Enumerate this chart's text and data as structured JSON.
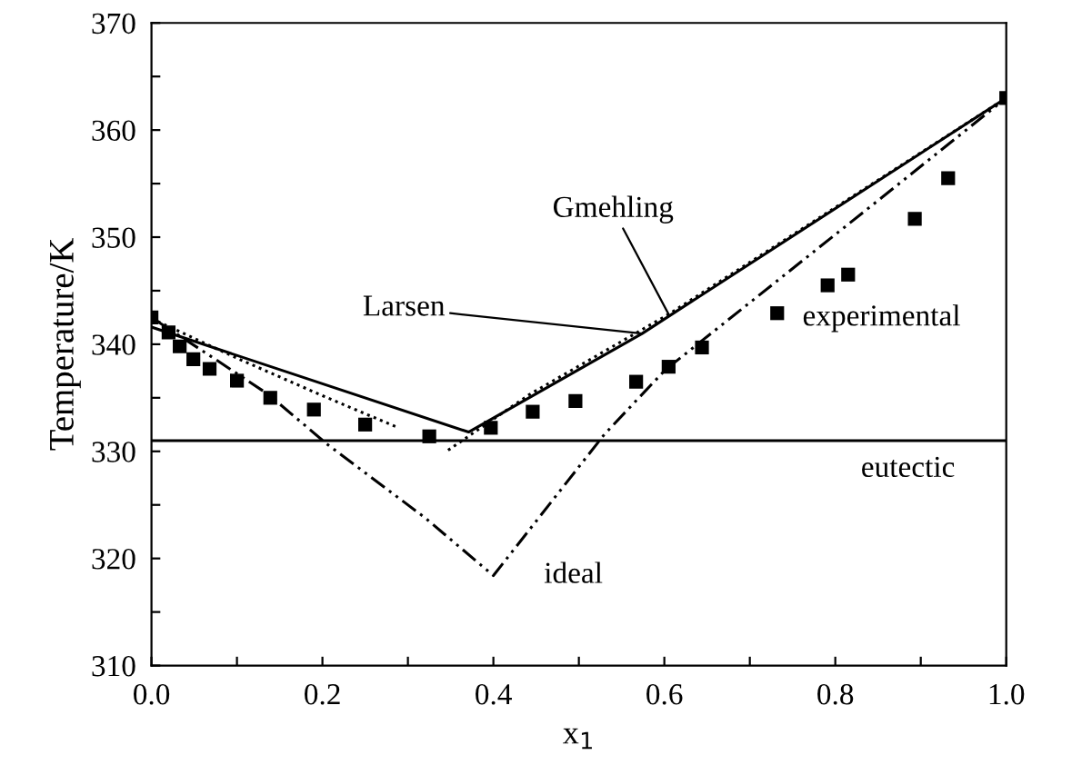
{
  "chart_data": {
    "type": "line",
    "xlabel": "x$_{1}$",
    "ylabel": "Temperature/K",
    "xlim": [
      0,
      1
    ],
    "ylim": [
      310,
      370
    ],
    "xticks": [
      {
        "value": 0,
        "label": "0.0"
      },
      {
        "value": 0.1,
        "label": null
      },
      {
        "value": 0.2,
        "label": "0.2"
      },
      {
        "value": 0.3,
        "label": null
      },
      {
        "value": 0.4,
        "label": "0.4"
      },
      {
        "value": 0.5,
        "label": null
      },
      {
        "value": 0.6,
        "label": "0.6"
      },
      {
        "value": 0.7,
        "label": null
      },
      {
        "value": 0.8,
        "label": "0.8"
      },
      {
        "value": 0.9,
        "label": null
      },
      {
        "value": 1,
        "label": "1.0"
      }
    ],
    "yticks": [
      310,
      {
        "value": 315,
        "label": null
      },
      320,
      {
        "value": 325,
        "label": null
      },
      330,
      {
        "value": 335,
        "label": null
      },
      340,
      {
        "value": 345,
        "label": null
      },
      350,
      {
        "value": 355,
        "label": null
      },
      360,
      {
        "value": 365,
        "label": null
      },
      370
    ],
    "series": [
      {
        "name": "experimental",
        "type": "scatter",
        "marker": "square",
        "color": "#000000",
        "x": [
          0,
          0.02,
          0.033,
          0.049,
          0.068,
          0.1,
          0.139,
          0.19,
          0.25,
          0.325,
          0.397,
          0.446,
          0.496,
          0.567,
          0.605,
          0.644,
          0.732,
          0.791,
          0.815,
          0.893,
          0.932,
          1.0
        ],
        "values": [
          342.5,
          341.1,
          339.8,
          338.6,
          337.7,
          336.6,
          335.0,
          333.9,
          332.5,
          331.4,
          332.2,
          333.7,
          334.7,
          336.5,
          337.9,
          339.7,
          342.9,
          345.5,
          346.5,
          351.7,
          355.5,
          363
        ]
      },
      {
        "name": "Larsen",
        "line_style": "solid",
        "color": "#000000",
        "x": [
          0,
          0.371,
          0.574,
          1.0
        ],
        "values": [
          341.6,
          331.8,
          341.0,
          363
        ]
      },
      {
        "name": "Gmehling",
        "line_style": "dotted",
        "color": "#000000",
        "x": [
          0,
          0.1,
          0.2,
          0.286,
          0.29,
          0.347,
          0.442,
          0.605,
          1.0
        ],
        "values": [
          342.4,
          338.7,
          335.2,
          332.3,
          null,
          330.1,
          335.3,
          342.8,
          363
        ]
      },
      {
        "name": "ideal",
        "line_style": "dashed",
        "color": "#000000",
        "x": [
          0,
          0.069,
          0.137,
          0.205,
          0.32,
          0.4,
          0.53,
          0.601,
          0.845,
          1.0
        ],
        "values": [
          342.5,
          338.9,
          335.3,
          330.7,
          323.8,
          318.4,
          331.6,
          337.6,
          353.1,
          363
        ]
      }
    ],
    "ref_lines": [
      {
        "axis": "y",
        "value": 331,
        "label": "eutectic",
        "color": "#000000",
        "line_style": "solid"
      }
    ]
  }
}
